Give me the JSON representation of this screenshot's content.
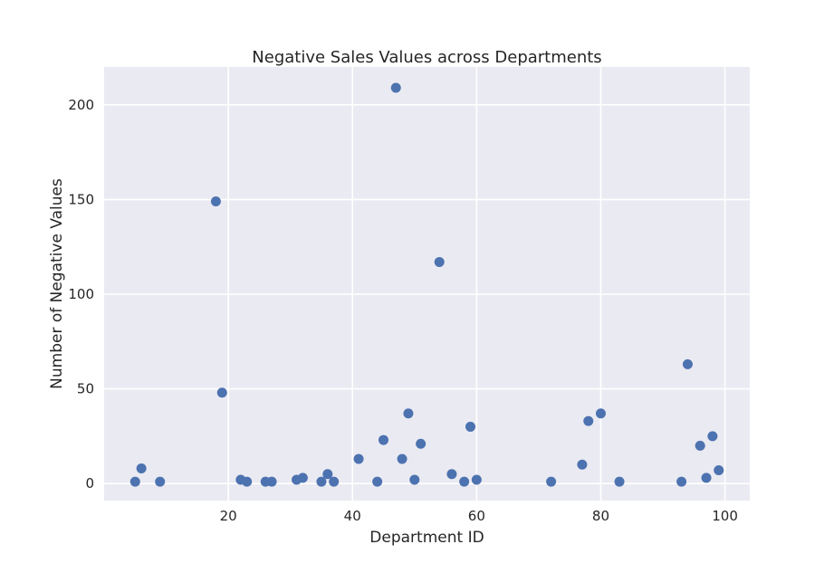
{
  "chart_data": {
    "type": "scatter",
    "title": "Negative Sales Values across Departments",
    "xlabel": "Department ID",
    "ylabel": "Number of Negative Values",
    "xlim": [
      0,
      104
    ],
    "ylim": [
      -9,
      220
    ],
    "xticks": [
      20,
      40,
      60,
      80,
      100
    ],
    "yticks": [
      0,
      50,
      100,
      150,
      200
    ],
    "grid": true,
    "colors": {
      "background": "#eaeaf2",
      "grid": "#ffffff",
      "marker": "#4c72b0",
      "text": "#262626"
    },
    "points": [
      {
        "x": 5,
        "y": 1
      },
      {
        "x": 6,
        "y": 8
      },
      {
        "x": 9,
        "y": 1
      },
      {
        "x": 18,
        "y": 149
      },
      {
        "x": 19,
        "y": 48
      },
      {
        "x": 22,
        "y": 2
      },
      {
        "x": 23,
        "y": 1
      },
      {
        "x": 26,
        "y": 1
      },
      {
        "x": 27,
        "y": 1
      },
      {
        "x": 31,
        "y": 2
      },
      {
        "x": 32,
        "y": 3
      },
      {
        "x": 35,
        "y": 1
      },
      {
        "x": 36,
        "y": 5
      },
      {
        "x": 37,
        "y": 1
      },
      {
        "x": 41,
        "y": 13
      },
      {
        "x": 44,
        "y": 1
      },
      {
        "x": 45,
        "y": 23
      },
      {
        "x": 47,
        "y": 209
      },
      {
        "x": 48,
        "y": 13
      },
      {
        "x": 49,
        "y": 37
      },
      {
        "x": 50,
        "y": 2
      },
      {
        "x": 51,
        "y": 21
      },
      {
        "x": 54,
        "y": 117
      },
      {
        "x": 56,
        "y": 5
      },
      {
        "x": 58,
        "y": 1
      },
      {
        "x": 59,
        "y": 30
      },
      {
        "x": 60,
        "y": 2
      },
      {
        "x": 72,
        "y": 1
      },
      {
        "x": 77,
        "y": 10
      },
      {
        "x": 78,
        "y": 33
      },
      {
        "x": 80,
        "y": 37
      },
      {
        "x": 83,
        "y": 1
      },
      {
        "x": 93,
        "y": 1
      },
      {
        "x": 94,
        "y": 63
      },
      {
        "x": 96,
        "y": 20
      },
      {
        "x": 97,
        "y": 3
      },
      {
        "x": 98,
        "y": 25
      },
      {
        "x": 99,
        "y": 7
      }
    ]
  }
}
